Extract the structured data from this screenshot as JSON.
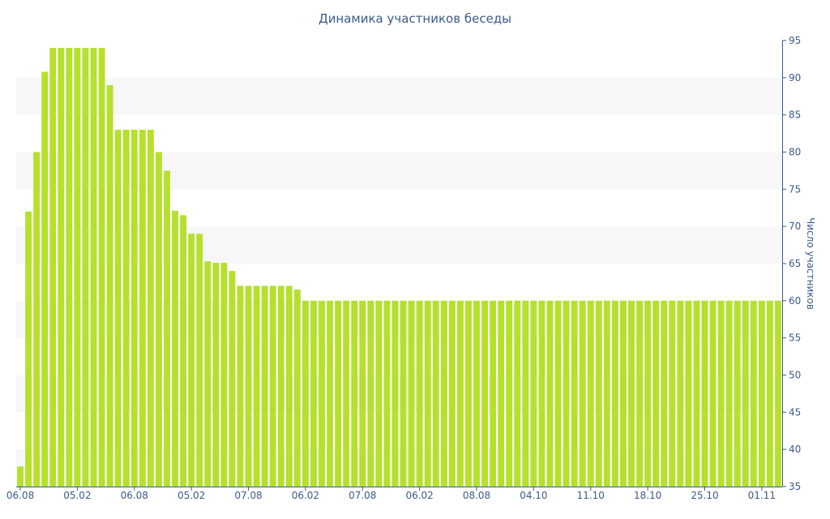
{
  "chart_data": {
    "type": "bar",
    "title": "Динамика участников беседы",
    "ylabel": "Число участников",
    "xlabel": "",
    "ylim": [
      35,
      95
    ],
    "yticks": [
      35,
      40,
      45,
      50,
      55,
      60,
      65,
      70,
      75,
      80,
      85,
      90,
      95
    ],
    "yaxis_position": "right",
    "grid": "alternating horizontal bands",
    "bar_color": "#b5e02c",
    "axis_color": "#3c5a8c",
    "band_color": "#f7f7f7",
    "values": [
      37.7,
      72,
      80,
      90.8,
      94,
      94,
      94,
      94,
      94,
      94,
      94,
      89,
      83,
      83,
      83,
      83,
      83,
      80,
      77.5,
      72.1,
      71.5,
      69,
      69,
      65.3,
      65.1,
      65.1,
      64,
      62,
      62,
      62,
      62,
      62,
      62,
      62,
      61.5,
      60,
      60,
      60,
      60,
      60,
      60,
      60,
      60,
      60,
      60,
      60,
      60,
      60,
      60,
      60,
      60,
      60,
      60,
      60,
      60,
      60,
      60,
      60,
      60,
      60,
      60,
      60,
      60,
      60,
      60,
      60,
      60,
      60,
      60,
      60,
      60,
      60,
      60,
      60,
      60,
      60,
      60,
      60,
      60,
      60,
      60,
      60,
      60,
      60,
      60,
      60,
      60,
      60,
      60,
      60,
      60,
      60,
      60,
      60
    ],
    "xticks": [
      {
        "label": "06.08",
        "index": 0
      },
      {
        "label": "05.02",
        "index": 7
      },
      {
        "label": "06.08",
        "index": 14
      },
      {
        "label": "05.02",
        "index": 21
      },
      {
        "label": "07.08",
        "index": 28
      },
      {
        "label": "06.02",
        "index": 35
      },
      {
        "label": "07.08",
        "index": 42
      },
      {
        "label": "06.02",
        "index": 49
      },
      {
        "label": "08.08",
        "index": 56
      },
      {
        "label": "04.10",
        "index": 63
      },
      {
        "label": "11.10",
        "index": 70
      },
      {
        "label": "18.10",
        "index": 77
      },
      {
        "label": "25.10",
        "index": 84
      },
      {
        "label": "01.11",
        "index": 91
      }
    ]
  }
}
